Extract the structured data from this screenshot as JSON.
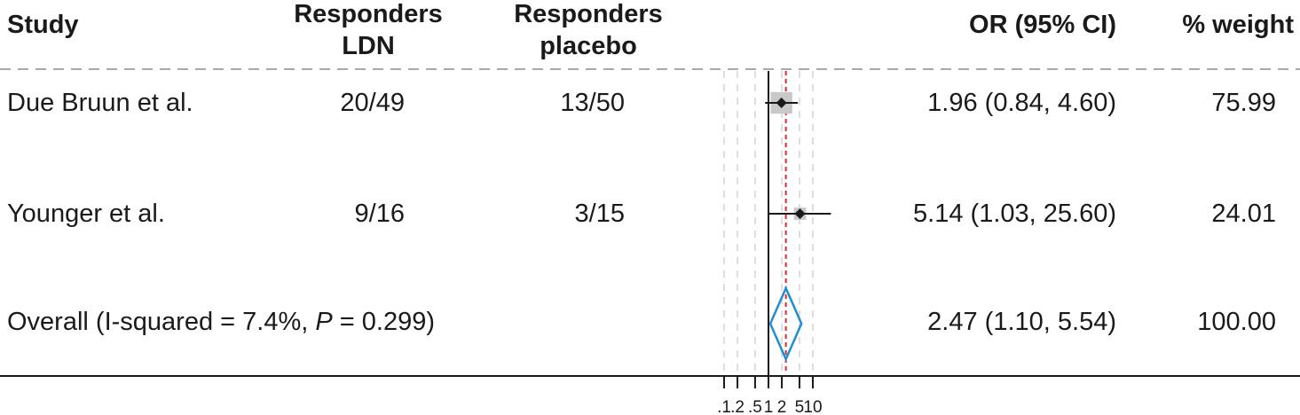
{
  "headers": {
    "study": "Study",
    "ldn_line1": "Responders",
    "ldn_line2": "LDN",
    "placebo_line1": "Responders",
    "placebo_line2": "placebo",
    "or": "OR (95% CI)",
    "weight": "% weight"
  },
  "rows": [
    {
      "study": "Due Bruun et al.",
      "ldn": "20/49",
      "placebo": "13/50",
      "or_text": "1.96 (0.84, 4.60)",
      "weight": "75.99"
    },
    {
      "study": "Younger et al.",
      "ldn": "9/16",
      "placebo": "3/15",
      "or_text": "5.14 (1.03, 25.60)",
      "weight": "24.01"
    }
  ],
  "overall": {
    "label_pre": "Overall (I-squared = 7.4%, ",
    "label_p": "P",
    "label_post": " = 0.299)",
    "or_text": "2.47 (1.10, 5.54)",
    "weight": "100.00"
  },
  "chart_data": {
    "type": "forest",
    "x_scale": "log",
    "x_ticks": [
      0.1,
      0.2,
      0.5,
      1,
      2,
      5,
      10
    ],
    "x_tick_labels": [
      ".1",
      ".2",
      ".5",
      "1",
      "2",
      "5",
      "10"
    ],
    "null_line": 1,
    "pooled_line": 2.47,
    "studies": [
      {
        "name": "Due Bruun et al.",
        "or": 1.96,
        "lower": 0.84,
        "upper": 4.6,
        "weight": 75.99
      },
      {
        "name": "Younger et al.",
        "or": 5.14,
        "lower": 1.03,
        "upper": 25.6,
        "weight": 24.01
      }
    ],
    "overall": {
      "or": 2.47,
      "lower": 1.1,
      "upper": 5.54,
      "weight": 100.0
    },
    "colors": {
      "diamond": "#1f8dd6",
      "pooled_line": "#e0282d",
      "square": "#c8c8c8",
      "marker": "#1a1a1a",
      "grid": "#d4d4d4"
    }
  }
}
